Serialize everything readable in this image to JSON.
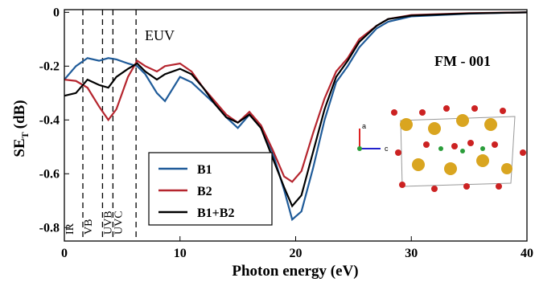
{
  "chart_data": {
    "type": "line",
    "xlabel": "Photon energy (eV)",
    "ylabel": {
      "main": "SE",
      "sub": "T",
      "unit": "(dB)"
    },
    "annotation": "EUV",
    "sample_label": "FM - 001",
    "inset_axes": [
      "a",
      "c"
    ],
    "dividers": [
      1.6,
      3.3,
      4.2,
      6.2
    ],
    "region_labels": [
      "IR",
      "VB",
      "UVB",
      "UVC"
    ],
    "xlim": [
      0,
      40
    ],
    "xticks": [
      0,
      10,
      20,
      30,
      40
    ],
    "ylim": [
      -0.85,
      0.01
    ],
    "yticks": [
      0,
      -0.2,
      -0.4,
      -0.6,
      -0.8
    ],
    "x": [
      0,
      1,
      2,
      3,
      3.8,
      4.5,
      5.5,
      6.3,
      7,
      8,
      8.7,
      10,
      11,
      12,
      13,
      14,
      15,
      16,
      17,
      18,
      19,
      19.7,
      20.5,
      21.5,
      22.5,
      23.5,
      24.5,
      25.5,
      27,
      28,
      30,
      35,
      40
    ],
    "series": [
      {
        "name": "B1",
        "color": "#1f5b99",
        "values": [
          -0.25,
          -0.2,
          -0.17,
          -0.18,
          -0.17,
          -0.175,
          -0.19,
          -0.2,
          -0.23,
          -0.3,
          -0.33,
          -0.24,
          -0.26,
          -0.3,
          -0.34,
          -0.39,
          -0.43,
          -0.38,
          -0.42,
          -0.52,
          -0.66,
          -0.77,
          -0.74,
          -0.58,
          -0.4,
          -0.26,
          -0.2,
          -0.13,
          -0.06,
          -0.035,
          -0.015,
          -0.005,
          0
        ]
      },
      {
        "name": "B2",
        "color": "#b5252e",
        "values": [
          -0.25,
          -0.255,
          -0.28,
          -0.35,
          -0.4,
          -0.36,
          -0.24,
          -0.18,
          -0.2,
          -0.22,
          -0.2,
          -0.19,
          -0.22,
          -0.28,
          -0.33,
          -0.38,
          -0.41,
          -0.37,
          -0.42,
          -0.51,
          -0.61,
          -0.63,
          -0.59,
          -0.45,
          -0.32,
          -0.22,
          -0.17,
          -0.1,
          -0.05,
          -0.025,
          -0.01,
          -0.003,
          0
        ]
      },
      {
        "name": "B1+B2",
        "color": "#000000",
        "values": [
          -0.31,
          -0.3,
          -0.25,
          -0.27,
          -0.28,
          -0.24,
          -0.21,
          -0.19,
          -0.22,
          -0.25,
          -0.23,
          -0.21,
          -0.23,
          -0.28,
          -0.34,
          -0.39,
          -0.41,
          -0.38,
          -0.43,
          -0.54,
          -0.65,
          -0.72,
          -0.68,
          -0.52,
          -0.36,
          -0.24,
          -0.18,
          -0.11,
          -0.05,
          -0.025,
          -0.012,
          -0.004,
          0
        ]
      }
    ]
  }
}
